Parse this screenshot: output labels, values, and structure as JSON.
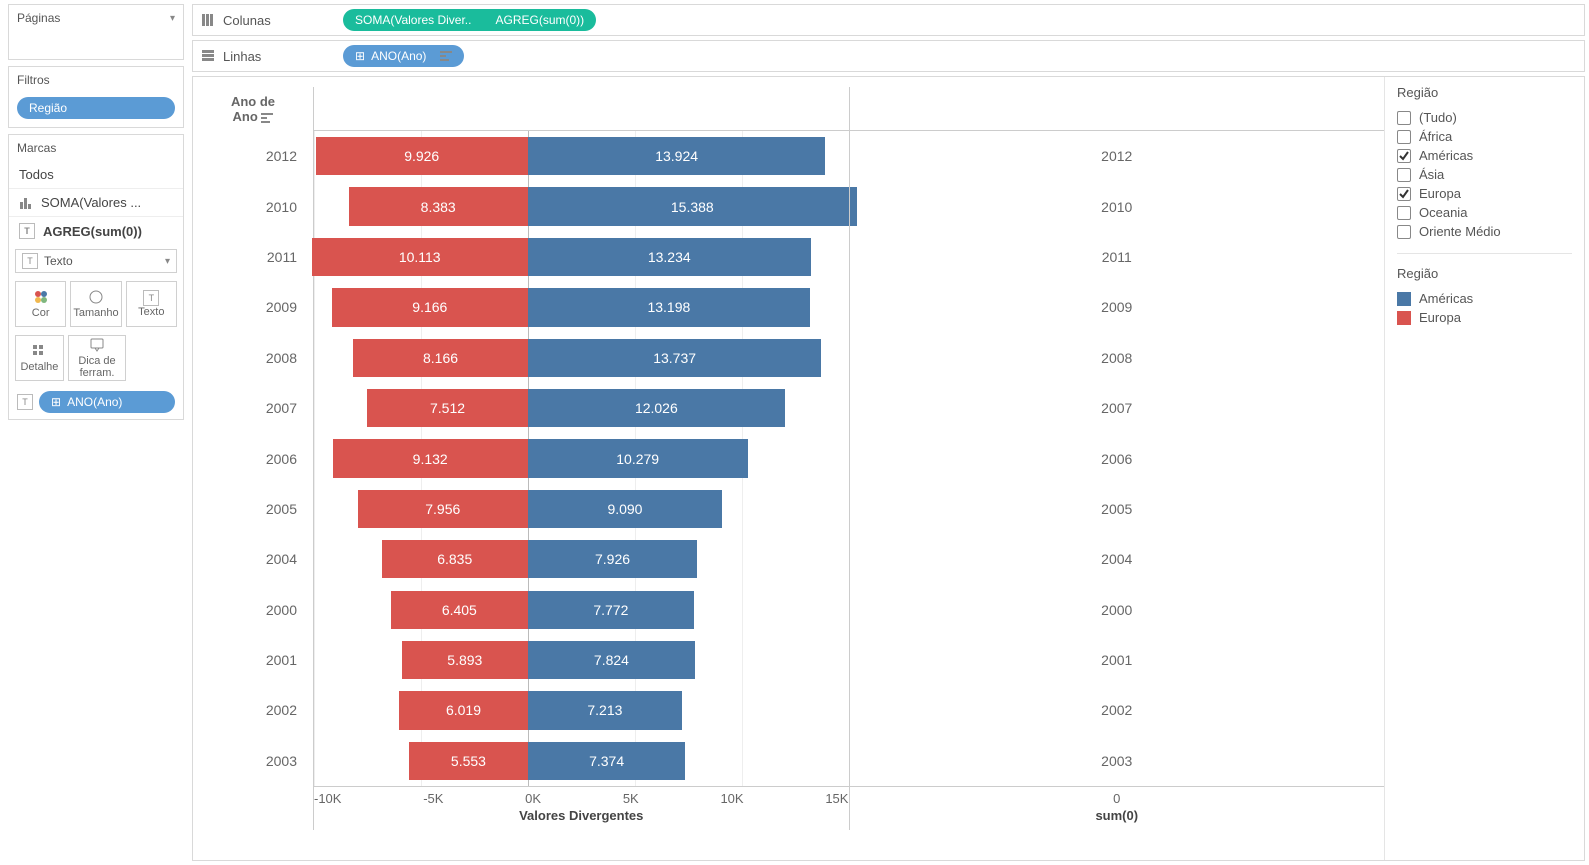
{
  "left": {
    "paginas": "Páginas",
    "filtros": "Filtros",
    "filtros_pill": "Região",
    "marcas": "Marcas",
    "todos": "Todos",
    "m_soma": "SOMA(Valores ...",
    "m_agreg": "AGREG(sum(0))",
    "select_label": "Texto",
    "btns": {
      "cor": "Cor",
      "tamanho": "Tamanho",
      "texto": "Texto",
      "detalhe": "Detalhe",
      "dica": "Dica de ferram."
    },
    "tag_ano": "ANO(Ano)"
  },
  "shelves": {
    "col_label": "Colunas",
    "col_pill1": "SOMA(Valores Diver..",
    "col_pill2": "AGREG(sum(0))",
    "row_label": "Linhas",
    "row_pill": "ANO(Ano)"
  },
  "y_header": "Ano de\nAno",
  "chart": {
    "type": "diverging-bar",
    "neg_color": "#d9544f",
    "pos_color": "#4a78a6",
    "xmin": -10000,
    "xmax": 15000,
    "ticks": [
      "-10K",
      "-5K",
      "0K",
      "5K",
      "10K",
      "15K"
    ],
    "x_title": "Valores Divergentes",
    "panel2_title": "sum(0)",
    "panel2_tick": "0",
    "rows": [
      {
        "year": "2012",
        "neg": 9926,
        "neg_label": "9.926",
        "pos": 13924,
        "pos_label": "13.924"
      },
      {
        "year": "2010",
        "neg": 8383,
        "neg_label": "8.383",
        "pos": 15388,
        "pos_label": "15.388"
      },
      {
        "year": "2011",
        "neg": 10113,
        "neg_label": "10.113",
        "pos": 13234,
        "pos_label": "13.234"
      },
      {
        "year": "2009",
        "neg": 9166,
        "neg_label": "9.166",
        "pos": 13198,
        "pos_label": "13.198"
      },
      {
        "year": "2008",
        "neg": 8166,
        "neg_label": "8.166",
        "pos": 13737,
        "pos_label": "13.737"
      },
      {
        "year": "2007",
        "neg": 7512,
        "neg_label": "7.512",
        "pos": 12026,
        "pos_label": "12.026"
      },
      {
        "year": "2006",
        "neg": 9132,
        "neg_label": "9.132",
        "pos": 10279,
        "pos_label": "10.279"
      },
      {
        "year": "2005",
        "neg": 7956,
        "neg_label": "7.956",
        "pos": 9090,
        "pos_label": "9.090"
      },
      {
        "year": "2004",
        "neg": 6835,
        "neg_label": "6.835",
        "pos": 7926,
        "pos_label": "7.926"
      },
      {
        "year": "2000",
        "neg": 6405,
        "neg_label": "6.405",
        "pos": 7772,
        "pos_label": "7.772"
      },
      {
        "year": "2001",
        "neg": 5893,
        "neg_label": "5.893",
        "pos": 7824,
        "pos_label": "7.824"
      },
      {
        "year": "2002",
        "neg": 6019,
        "neg_label": "6.019",
        "pos": 7213,
        "pos_label": "7.213"
      },
      {
        "year": "2003",
        "neg": 5553,
        "neg_label": "5.553",
        "pos": 7374,
        "pos_label": "7.374"
      }
    ]
  },
  "legend": {
    "filter_title": "Região",
    "items": [
      {
        "label": "(Tudo)",
        "checked": false
      },
      {
        "label": "África",
        "checked": false
      },
      {
        "label": "Américas",
        "checked": true
      },
      {
        "label": "Ásia",
        "checked": false
      },
      {
        "label": "Europa",
        "checked": true
      },
      {
        "label": "Oceania",
        "checked": false
      },
      {
        "label": "Oriente Médio",
        "checked": false
      }
    ],
    "color_title": "Região",
    "colors": [
      {
        "label": "Américas",
        "hex": "#4a78a6"
      },
      {
        "label": "Europa",
        "hex": "#d9544f"
      }
    ]
  }
}
